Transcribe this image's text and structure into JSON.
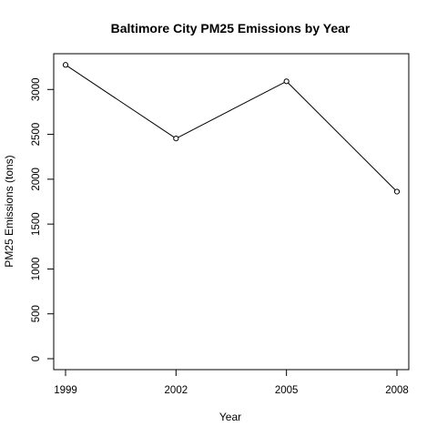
{
  "chart_data": {
    "type": "line",
    "title": "Baltimore City PM25 Emissions by Year",
    "xlabel": "Year",
    "ylabel": "PM25 Emissions (tons)",
    "x": [
      1999,
      2002,
      2005,
      2008
    ],
    "x_tick_labels": [
      "1999",
      "2002",
      "2005",
      "2008"
    ],
    "y_ticks": [
      0,
      500,
      1000,
      1500,
      2000,
      2500,
      3000
    ],
    "y_tick_labels": [
      "0",
      "500",
      "1000",
      "1500",
      "2000",
      "2500",
      "3000"
    ],
    "series": [
      {
        "values": [
          3274,
          2454,
          3091,
          1862
        ]
      }
    ],
    "xlim": [
      1999,
      2008
    ],
    "ylim": [
      0,
      3300
    ],
    "grid": false,
    "legend": "none",
    "line_color": "#000000",
    "marker": "open-circle"
  }
}
